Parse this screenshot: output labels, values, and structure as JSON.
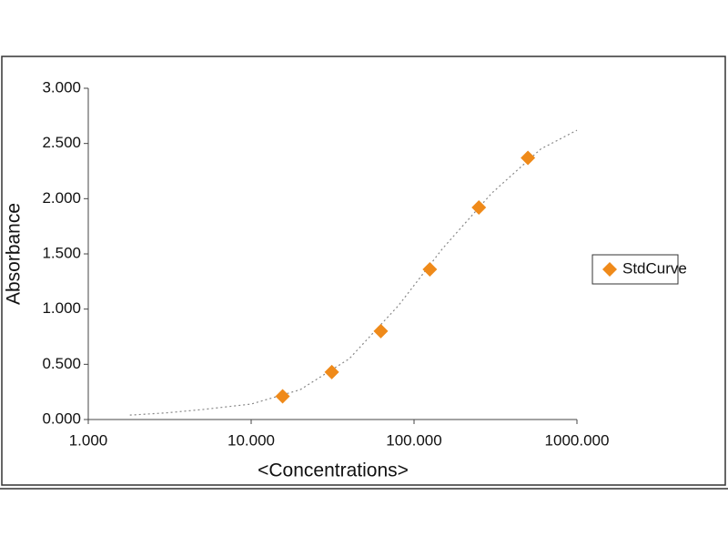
{
  "chart_data": {
    "type": "scatter",
    "log_x": true,
    "xlabel": "<Concentrations>",
    "ylabel": "Absorbance",
    "series": [
      {
        "name": "StdCurve",
        "color": "#ef8a1a",
        "marker": "diamond",
        "x": [
          15.6,
          31.25,
          62.5,
          125,
          250,
          500
        ],
        "values": [
          0.21,
          0.43,
          0.8,
          1.36,
          1.92,
          2.37
        ]
      }
    ],
    "curve": {
      "color": "#888888",
      "style": "dotted",
      "x": [
        1.8,
        3,
        5,
        10,
        20,
        40,
        80,
        150,
        300,
        600,
        1000
      ],
      "values": [
        0.04,
        0.06,
        0.09,
        0.14,
        0.27,
        0.55,
        1.03,
        1.55,
        2.05,
        2.45,
        2.62
      ]
    },
    "xlim": [
      1,
      1000
    ],
    "xticks": [
      {
        "value": 1,
        "label": "1.000"
      },
      {
        "value": 10,
        "label": "10.000"
      },
      {
        "value": 100,
        "label": "100.000"
      },
      {
        "value": 1000,
        "label": "1000.000"
      }
    ],
    "ylim": [
      0,
      3
    ],
    "yticks": [
      {
        "value": 0,
        "label": "0.000"
      },
      {
        "value": 0.5,
        "label": "0.500"
      },
      {
        "value": 1,
        "label": "1.000"
      },
      {
        "value": 1.5,
        "label": "1.500"
      },
      {
        "value": 2,
        "label": "2.000"
      },
      {
        "value": 2.5,
        "label": "2.500"
      },
      {
        "value": 3,
        "label": "3.000"
      }
    ],
    "legend": "right"
  }
}
